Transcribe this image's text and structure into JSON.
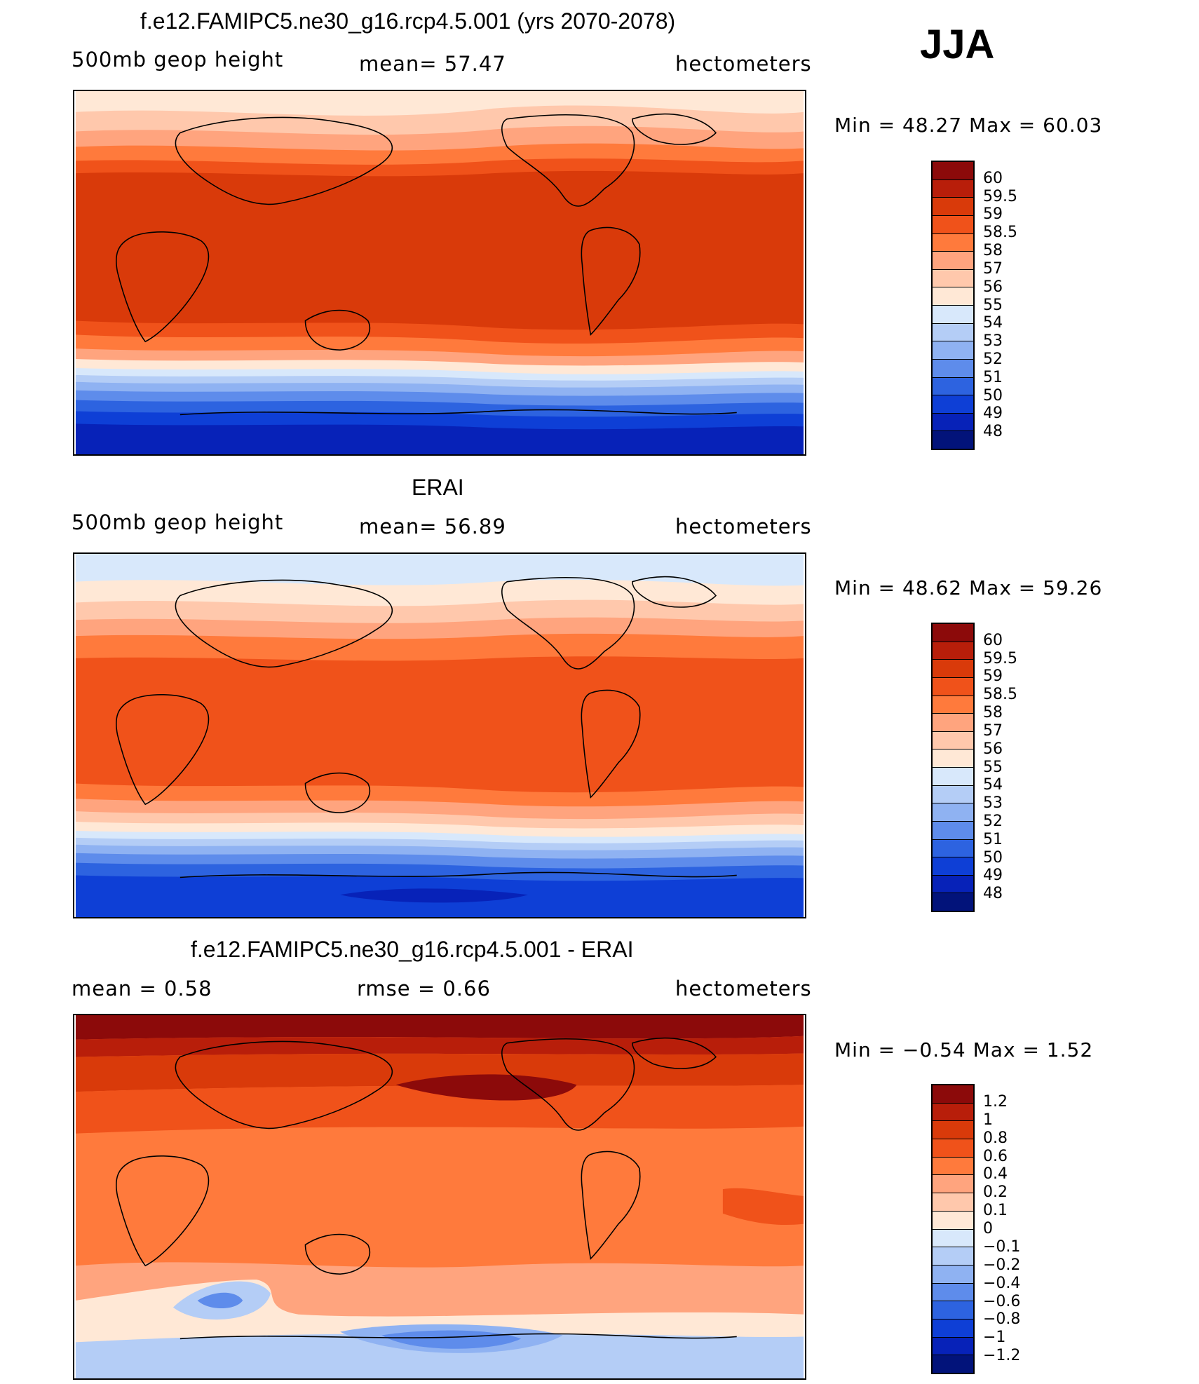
{
  "season": "JJA",
  "panels": [
    {
      "title": "f.e12.FAMIPC5.ne30_g16.rcp4.5.001 (yrs 2070-2078)",
      "left_label": "500mb  geop  height",
      "center_label": "mean=   57.47",
      "right_label": "hectometers",
      "minmax": "Min  =   48.27  Max  =   60.03",
      "min": 48.27,
      "max": 60.03,
      "mean": 57.47,
      "colorbar": {
        "labels": [
          "60",
          "59.5",
          "59",
          "58.5",
          "58",
          "57",
          "56",
          "55",
          "54",
          "53",
          "52",
          "51",
          "50",
          "49",
          "48"
        ],
        "colors": [
          "#8c0a0a",
          "#b81e0a",
          "#d93a0a",
          "#f0521a",
          "#ff7a3c",
          "#ffa47e",
          "#ffc8ac",
          "#ffe8d6",
          "#d8e8fb",
          "#b4cdf6",
          "#8fb2f2",
          "#5e8ceb",
          "#2d63e0",
          "#0e3fd6",
          "#0722b8",
          "#02137a"
        ]
      }
    },
    {
      "title": "ERAI",
      "left_label": "500mb  geop  height",
      "center_label": "mean=   56.89",
      "right_label": "hectometers",
      "minmax": "Min  =   48.62  Max  =   59.26",
      "min": 48.62,
      "max": 59.26,
      "mean": 56.89,
      "colorbar": {
        "labels": [
          "60",
          "59.5",
          "59",
          "58.5",
          "58",
          "57",
          "56",
          "55",
          "54",
          "53",
          "52",
          "51",
          "50",
          "49",
          "48"
        ],
        "colors": [
          "#8c0a0a",
          "#b81e0a",
          "#d93a0a",
          "#f0521a",
          "#ff7a3c",
          "#ffa47e",
          "#ffc8ac",
          "#ffe8d6",
          "#d8e8fb",
          "#b4cdf6",
          "#8fb2f2",
          "#5e8ceb",
          "#2d63e0",
          "#0e3fd6",
          "#0722b8",
          "#02137a"
        ]
      }
    },
    {
      "title": "f.e12.FAMIPC5.ne30_g16.rcp4.5.001 - ERAI",
      "left_label": "mean  =     0.58",
      "center_label": "rmse  =     0.66",
      "right_label": "hectometers",
      "minmax": "Min  =   −0.54  Max  =     1.52",
      "min": -0.54,
      "max": 1.52,
      "mean": 0.58,
      "rmse": 0.66,
      "colorbar": {
        "labels": [
          "1.2",
          "1",
          "0.8",
          "0.6",
          "0.4",
          "0.2",
          "0.1",
          "0",
          "−0.1",
          "−0.2",
          "−0.4",
          "−0.6",
          "−0.8",
          "−1",
          "−1.2"
        ],
        "colors": [
          "#8c0a0a",
          "#b81e0a",
          "#d93a0a",
          "#f0521a",
          "#ff7a3c",
          "#ffa47e",
          "#ffc8ac",
          "#ffe8d6",
          "#d8e8fb",
          "#b4cdf6",
          "#8fb2f2",
          "#5e8ceb",
          "#2d63e0",
          "#0e3fd6",
          "#0722b8",
          "#02137a"
        ]
      }
    }
  ]
}
